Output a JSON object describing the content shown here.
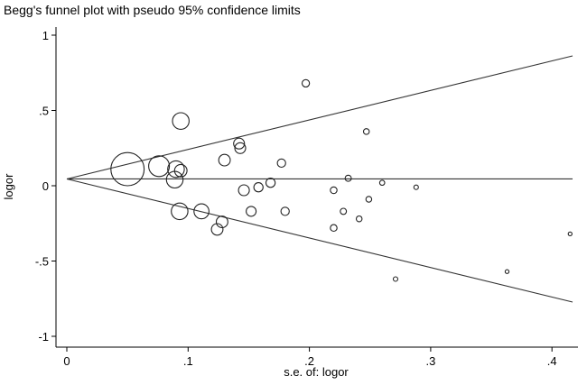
{
  "chart_data": {
    "type": "scatter",
    "title": "Begg's funnel plot with pseudo 95% confidence limits",
    "xlabel": "s.e. of: logor",
    "ylabel": "logor",
    "xlim": [
      -0.01,
      0.42
    ],
    "ylim": [
      -1.05,
      1.05
    ],
    "xticks": [
      0,
      0.1,
      0.2,
      0.3,
      0.4
    ],
    "xtick_labels": [
      "0",
      ".1",
      ".2",
      ".3",
      ".4"
    ],
    "yticks": [
      1,
      0.5,
      0,
      -0.5,
      -1
    ],
    "ytick_labels": [
      "1",
      ".5",
      "0",
      "-.5",
      "-1"
    ],
    "pooled_estimate": 0.045,
    "confidence_multiplier": 1.96,
    "points": [
      {
        "x": 0.05,
        "y": 0.11,
        "size": 4.0
      },
      {
        "x": 0.076,
        "y": 0.13,
        "size": 2.5
      },
      {
        "x": 0.094,
        "y": 0.43,
        "size": 2.0
      },
      {
        "x": 0.09,
        "y": 0.11,
        "size": 2.0
      },
      {
        "x": 0.094,
        "y": 0.1,
        "size": 1.5
      },
      {
        "x": 0.089,
        "y": 0.04,
        "size": 2.0
      },
      {
        "x": 0.093,
        "y": -0.17,
        "size": 2.0
      },
      {
        "x": 0.111,
        "y": -0.17,
        "size": 1.8
      },
      {
        "x": 0.128,
        "y": -0.24,
        "size": 1.4
      },
      {
        "x": 0.124,
        "y": -0.29,
        "size": 1.4
      },
      {
        "x": 0.13,
        "y": 0.17,
        "size": 1.4
      },
      {
        "x": 0.142,
        "y": 0.28,
        "size": 1.3
      },
      {
        "x": 0.143,
        "y": 0.25,
        "size": 1.3
      },
      {
        "x": 0.146,
        "y": -0.03,
        "size": 1.3
      },
      {
        "x": 0.152,
        "y": -0.17,
        "size": 1.2
      },
      {
        "x": 0.158,
        "y": -0.01,
        "size": 1.1
      },
      {
        "x": 0.168,
        "y": 0.02,
        "size": 1.1
      },
      {
        "x": 0.177,
        "y": 0.15,
        "size": 1.0
      },
      {
        "x": 0.18,
        "y": -0.17,
        "size": 1.0
      },
      {
        "x": 0.197,
        "y": 0.68,
        "size": 0.9
      },
      {
        "x": 0.22,
        "y": -0.03,
        "size": 0.8
      },
      {
        "x": 0.22,
        "y": -0.28,
        "size": 0.8
      },
      {
        "x": 0.228,
        "y": -0.17,
        "size": 0.75
      },
      {
        "x": 0.232,
        "y": 0.05,
        "size": 0.75
      },
      {
        "x": 0.241,
        "y": -0.22,
        "size": 0.7
      },
      {
        "x": 0.247,
        "y": 0.36,
        "size": 0.7
      },
      {
        "x": 0.249,
        "y": -0.09,
        "size": 0.7
      },
      {
        "x": 0.26,
        "y": 0.02,
        "size": 0.6
      },
      {
        "x": 0.271,
        "y": -0.62,
        "size": 0.55
      },
      {
        "x": 0.288,
        "y": -0.01,
        "size": 0.55
      },
      {
        "x": 0.363,
        "y": -0.57,
        "size": 0.45
      },
      {
        "x": 0.415,
        "y": -0.32,
        "size": 0.45
      }
    ]
  }
}
